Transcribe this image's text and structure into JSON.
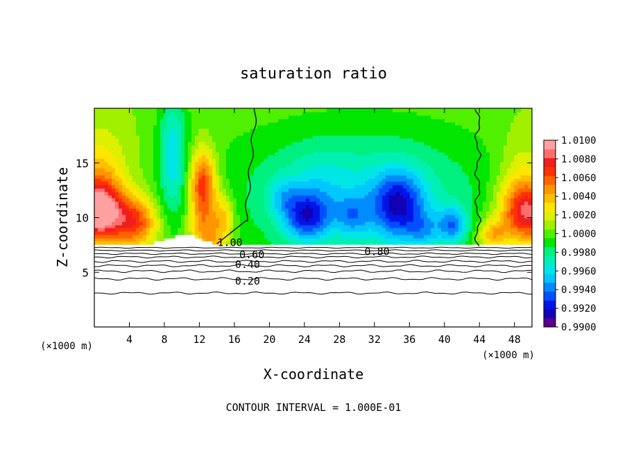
{
  "chart_data": {
    "type": "heatmap",
    "title": "saturation ratio",
    "xlabel": "X-coordinate",
    "ylabel": "Z-coordinate",
    "x_unit_left": "(×1000 m)",
    "x_unit_right": "(×1000 m)",
    "footer": "CONTOUR INTERVAL = 1.000E-01",
    "xlim": [
      0,
      50
    ],
    "ylim": [
      0,
      20
    ],
    "x_ticks": [
      4,
      8,
      12,
      16,
      20,
      24,
      28,
      32,
      36,
      40,
      44,
      48
    ],
    "y_ticks": [
      5,
      10,
      15
    ],
    "contour_labels": [
      {
        "text": "1.00",
        "x": 15.5,
        "z": 7.7
      },
      {
        "text": "0.80",
        "x": 32.3,
        "z": 6.9
      },
      {
        "text": "0.60",
        "x": 18.0,
        "z": 6.6
      },
      {
        "text": "0.40",
        "x": 17.5,
        "z": 5.7
      },
      {
        "text": "0.20",
        "x": 17.5,
        "z": 4.2
      }
    ],
    "colorbar": {
      "min": 0.99,
      "max": 1.01,
      "tick_labels": [
        "1.0100",
        "1.0080",
        "1.0060",
        "1.0040",
        "1.0020",
        "1.0000",
        "0.9980",
        "0.9960",
        "0.9940",
        "0.9920",
        "0.9900"
      ],
      "colors": [
        "#5a008c",
        "#1400b4",
        "#0014e6",
        "#0050ff",
        "#008cff",
        "#00c8ff",
        "#00e6e6",
        "#00f0b4",
        "#00f080",
        "#00e600",
        "#50f000",
        "#a0f000",
        "#dcf000",
        "#ffe600",
        "#ffbe00",
        "#ff9600",
        "#ff6400",
        "#ff3200",
        "#f01e1e",
        "#ff6e6e",
        "#ffa0a0"
      ]
    }
  }
}
